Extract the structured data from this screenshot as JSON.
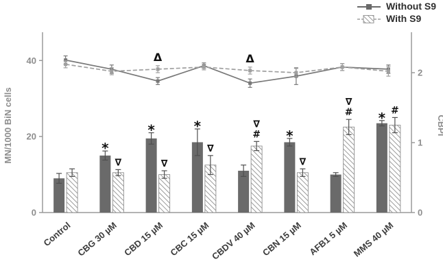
{
  "chart_data": {
    "type": "bar+line",
    "categories": [
      "Control",
      "CBG 30 µM",
      "CBD 15 µM",
      "CBC 15 µM",
      "CBDV 40 µM",
      "CBN 15 µM",
      "AFB1 5 µM",
      "MMS 40 µM"
    ],
    "ylabel_left": "MN/1000 BiN cells",
    "ylabel_right": "CBPI",
    "ylim_left": [
      0,
      46
    ],
    "ylim_right": [
      0,
      2.5
    ],
    "yticks_left": [
      0,
      20,
      40
    ],
    "yticks_right": [
      0,
      1,
      2
    ],
    "grid": false,
    "legend_position": "top-right",
    "bar_series": [
      {
        "name": "Without S9",
        "style": "solid",
        "values": [
          9,
          15,
          19.5,
          18.5,
          11,
          18.5,
          10,
          23.5
        ],
        "errors": [
          1.3,
          1.2,
          1.5,
          3.5,
          1.5,
          1.0,
          0.5,
          0.7
        ],
        "annotations": [
          [],
          [
            "*"
          ],
          [
            "*"
          ],
          [
            "*"
          ],
          [],
          [
            "*"
          ],
          [],
          [
            "*"
          ]
        ]
      },
      {
        "name": "With S9",
        "style": "hatched",
        "values": [
          10.5,
          10.5,
          10,
          12.5,
          17.5,
          10.5,
          22.5,
          23
        ],
        "errors": [
          1.0,
          0.8,
          1.0,
          2.5,
          1.2,
          1.0,
          2.0,
          2.0
        ],
        "annotations": [
          [],
          [
            "∇"
          ],
          [
            "∇"
          ],
          [
            "∇"
          ],
          [
            "∇",
            "#"
          ],
          [
            "∇"
          ],
          [
            "∇",
            "#"
          ],
          [
            "#"
          ]
        ]
      }
    ],
    "line_series": [
      {
        "name": "Without S9",
        "style": "solid",
        "values": [
          2.18,
          2.05,
          1.88,
          2.1,
          1.85,
          1.95,
          2.08,
          2.05
        ],
        "errors": [
          0.06,
          0.06,
          0.05,
          0.04,
          0.06,
          0.12,
          0.05,
          0.06
        ],
        "annotations": [
          "",
          "",
          "",
          "",
          "",
          "",
          "",
          ""
        ]
      },
      {
        "name": "With S9",
        "style": "dashed",
        "values": [
          2.12,
          2.02,
          2.05,
          2.08,
          2.03,
          2.0,
          2.08,
          2.02
        ],
        "errors": [
          0.05,
          0.05,
          0.05,
          0.04,
          0.05,
          0.06,
          0.05,
          0.07
        ],
        "annotations": [
          "",
          "",
          "Δ",
          "",
          "Δ",
          "",
          "",
          ""
        ]
      }
    ]
  },
  "colors": {
    "bar_solid": "#6a6a6a",
    "hatch_stroke": "#8f8f8f",
    "line_solid": "#787878",
    "line_dashed": "#9f9f9f",
    "axis": "#9a9a9a",
    "error_bar": "#4f4f4f",
    "tick_text": "#8d8d8d",
    "category_text": "#3c3c3c",
    "annotation_text": "#111111"
  }
}
